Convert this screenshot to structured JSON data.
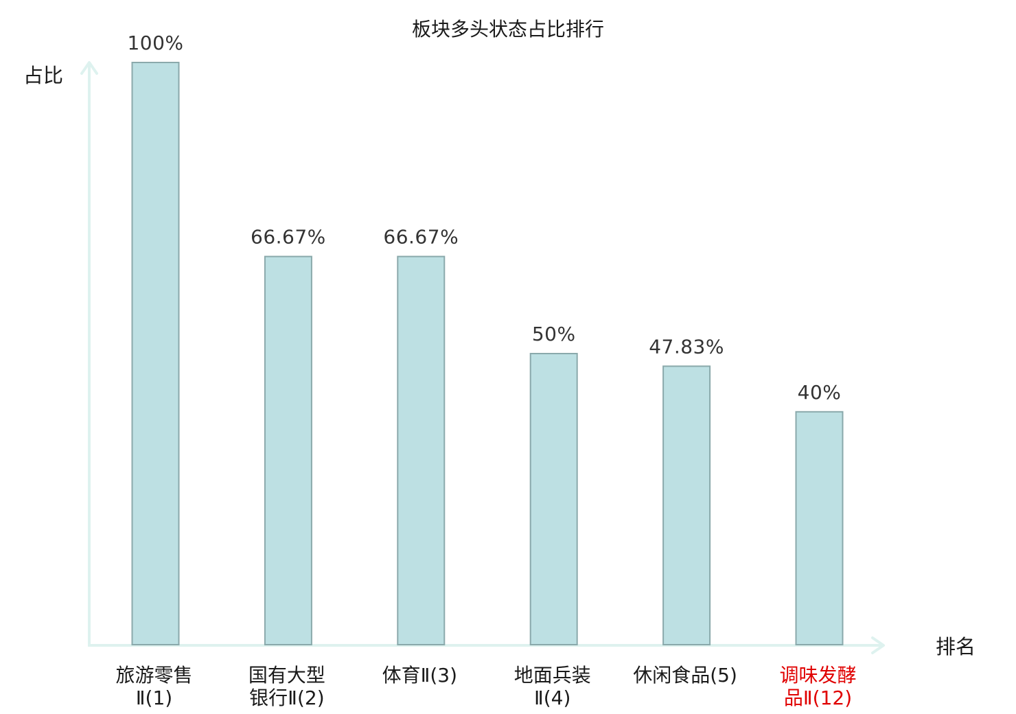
{
  "chart_data": {
    "type": "bar",
    "title": "板块多头状态占比排行",
    "xlabel": "排名",
    "ylabel": "占比",
    "ylim": [
      0,
      100
    ],
    "categories": [
      [
        "旅游零售",
        "Ⅱ(1)"
      ],
      [
        "国有大型",
        "银行Ⅱ(2)"
      ],
      [
        "体育Ⅱ(3)"
      ],
      [
        "地面兵装",
        "Ⅱ(4)"
      ],
      [
        "休闲食品(5)"
      ],
      [
        "调味发酵",
        "品Ⅱ(12)"
      ]
    ],
    "values": [
      100,
      66.67,
      66.67,
      50,
      47.83,
      40
    ],
    "data_labels": [
      "100%",
      "66.67%",
      "66.67%",
      "50%",
      "47.83%",
      "40%"
    ],
    "highlighted_category_index": 5,
    "grid": false,
    "colors": {
      "bar_fill": "#bde0e3",
      "bar_stroke": "#8aa9ab",
      "axis": "#def2ef",
      "text": "#1a1a1a",
      "label_text": "#333333",
      "highlight": "#e00000"
    }
  }
}
